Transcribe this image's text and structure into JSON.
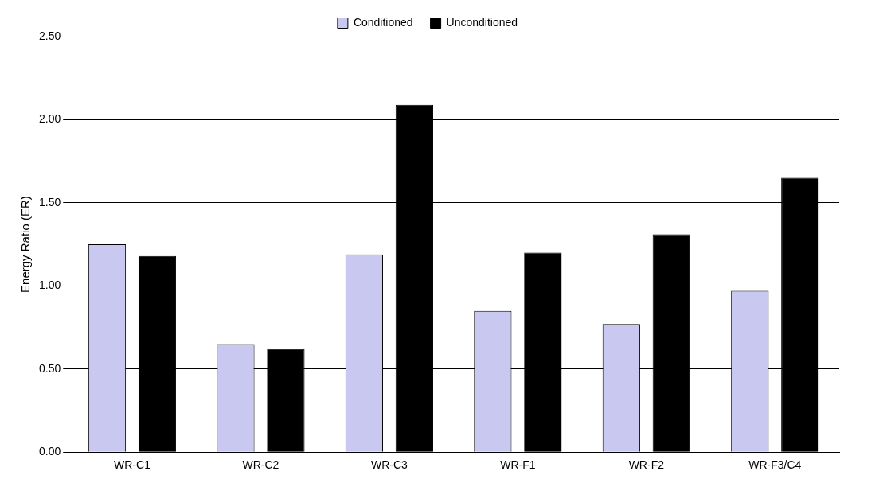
{
  "chart_data": {
    "type": "bar",
    "ylabel": "Energy Ratio (ER)",
    "categories": [
      "WR-C1",
      "WR-C2",
      "WR-C3",
      "WR-F1",
      "WR-F2",
      "WR-F3/C4"
    ],
    "series": [
      {
        "name": "Conditioned",
        "color": "#c8c8f0",
        "values": [
          1.25,
          0.65,
          1.19,
          0.85,
          0.77,
          0.97
        ]
      },
      {
        "name": "Unconditioned",
        "color": "#000000",
        "values": [
          1.18,
          0.62,
          2.09,
          1.2,
          1.31,
          1.65
        ]
      }
    ],
    "ylim": [
      0,
      2.5
    ],
    "yticks": [
      {
        "value": 0,
        "label": "0.00"
      },
      {
        "value": 0.5,
        "label": "0.50"
      },
      {
        "value": 1,
        "label": "1.00"
      },
      {
        "value": 1.5,
        "label": "1.50"
      },
      {
        "value": 2,
        "label": "2.00"
      },
      {
        "value": 2.5,
        "label": "2.50"
      }
    ],
    "grid": "y",
    "legend": "top"
  }
}
